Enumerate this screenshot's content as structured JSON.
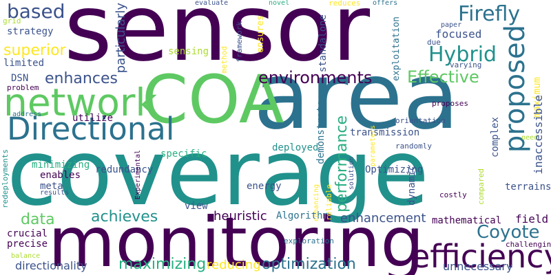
{
  "colors": {
    "background": "#ffffff",
    "dark_purple": "#440154",
    "indigo": "#3b528b",
    "teal": "#2c728e",
    "green_teal": "#21918c",
    "sea_green": "#28ae80",
    "green": "#5ec962",
    "yellow_green": "#addc30",
    "yellow": "#fde725"
  },
  "words": [
    {
      "id": "sensor",
      "text": "sensor",
      "color": "#440154",
      "orientation": "horizontal"
    },
    {
      "id": "coverage",
      "text": "coverage",
      "color": "#21918c",
      "orientation": "horizontal"
    },
    {
      "id": "area",
      "text": "area",
      "color": "#2c728e",
      "orientation": "horizontal"
    },
    {
      "id": "monitoring",
      "text": "monitoring",
      "color": "#440154",
      "orientation": "horizontal"
    },
    {
      "id": "coa",
      "text": "COA",
      "color": "#5ec962",
      "orientation": "horizontal"
    },
    {
      "id": "network",
      "text": "network",
      "color": "#5ec962",
      "orientation": "horizontal"
    },
    {
      "id": "directional",
      "text": "Directional",
      "color": "#2c728e",
      "orientation": "horizontal"
    },
    {
      "id": "efficiency",
      "text": "efficiency",
      "color": "#440154",
      "orientation": "horizontal"
    },
    {
      "id": "proposed",
      "text": "proposed",
      "color": "#2c728e",
      "orientation": "vertical"
    },
    {
      "id": "based",
      "text": "based",
      "color": "#3b528b",
      "orientation": "horizontal"
    },
    {
      "id": "firefly",
      "text": "Firefly",
      "color": "#2c728e",
      "orientation": "horizontal"
    },
    {
      "id": "hybrid",
      "text": "Hybrid",
      "color": "#21918c",
      "orientation": "horizontal"
    },
    {
      "id": "effective",
      "text": "Effective",
      "color": "#5ec962",
      "orientation": "horizontal"
    },
    {
      "id": "environments",
      "text": "environments",
      "color": "#440154",
      "orientation": "horizontal"
    },
    {
      "id": "coyote",
      "text": "Coyote",
      "color": "#2c728e",
      "orientation": "horizontal"
    },
    {
      "id": "superior",
      "text": "superior",
      "color": "#fde725",
      "orientation": "horizontal"
    },
    {
      "id": "enhances",
      "text": "enhances",
      "color": "#3b528b",
      "orientation": "horizontal"
    },
    {
      "id": "achieves",
      "text": "achieves",
      "color": "#21918c",
      "orientation": "horizontal"
    },
    {
      "id": "maximizing",
      "text": "maximizing",
      "color": "#28ae80",
      "orientation": "horizontal"
    },
    {
      "id": "optimization",
      "text": "optimization",
      "color": "#2c728e",
      "orientation": "horizontal"
    },
    {
      "id": "performance",
      "text": "performance",
      "color": "#28ae80",
      "orientation": "vertical"
    },
    {
      "id": "data",
      "text": "data",
      "color": "#5ec962",
      "orientation": "horizontal"
    },
    {
      "id": "directionality",
      "text": "directionality",
      "color": "#3b528b",
      "orientation": "horizontal"
    },
    {
      "id": "reducing",
      "text": "reducing",
      "color": "#fde725",
      "orientation": "horizontal"
    },
    {
      "id": "enhancement",
      "text": "enhancement",
      "color": "#3b528b",
      "orientation": "horizontal"
    },
    {
      "id": "heuristic",
      "text": "heuristic",
      "color": "#440154",
      "orientation": "horizontal"
    },
    {
      "id": "unnecessary",
      "text": "unnecessary",
      "color": "#3b528b",
      "orientation": "horizontal"
    },
    {
      "id": "particularly",
      "text": "particularly",
      "color": "#3b528b",
      "orientation": "vertical"
    },
    {
      "id": "strategy",
      "text": "strategy",
      "color": "#3b528b",
      "orientation": "horizontal"
    },
    {
      "id": "focused",
      "text": "focused",
      "color": "#3b528b",
      "orientation": "horizontal"
    },
    {
      "id": "sensing",
      "text": "sensing",
      "color": "#addc30",
      "orientation": "horizontal"
    },
    {
      "id": "limited",
      "text": "limited",
      "color": "#3b528b",
      "orientation": "horizontal"
    },
    {
      "id": "dsn",
      "text": "DSN",
      "color": "#3b528b",
      "orientation": "horizontal"
    },
    {
      "id": "problem",
      "text": "problem",
      "color": "#440154",
      "orientation": "horizontal"
    },
    {
      "id": "utilize",
      "text": "utilize",
      "color": "#440154",
      "orientation": "horizontal"
    },
    {
      "id": "enables",
      "text": "enables",
      "color": "#440154",
      "orientation": "horizontal"
    },
    {
      "id": "meta",
      "text": "meta",
      "color": "#3b528b",
      "orientation": "horizontal"
    },
    {
      "id": "energy",
      "text": "energy",
      "color": "#3b528b",
      "orientation": "horizontal"
    },
    {
      "id": "view",
      "text": "view",
      "color": "#3b528b",
      "orientation": "horizontal"
    },
    {
      "id": "crucial",
      "text": "crucial",
      "color": "#440154",
      "orientation": "horizontal"
    },
    {
      "id": "precise",
      "text": "precise",
      "color": "#440154",
      "orientation": "horizontal"
    },
    {
      "id": "field",
      "text": "field",
      "color": "#440154",
      "orientation": "horizontal"
    },
    {
      "id": "terrains",
      "text": "terrains",
      "color": "#3b528b",
      "orientation": "horizontal"
    },
    {
      "id": "transmission",
      "text": "transmission",
      "color": "#3b528b",
      "orientation": "vertical"
    },
    {
      "id": "orientation",
      "text": "orientation",
      "color": "#3b528b",
      "orientation": "vertical"
    },
    {
      "id": "randomly",
      "text": "randomly",
      "color": "#3b528b",
      "orientation": "vertical"
    },
    {
      "id": "deployed",
      "text": "deployed",
      "color": "#21918c",
      "orientation": "vertical"
    },
    {
      "id": "specific",
      "text": "specific",
      "color": "#28ae80",
      "orientation": "vertical"
    },
    {
      "id": "redundancy",
      "text": "redundancy",
      "color": "#3b528b",
      "orientation": "vertical"
    },
    {
      "id": "minimizing",
      "text": "minimizing",
      "color": "#28ae80",
      "orientation": "vertical"
    },
    {
      "id": "optimizing",
      "text": "Optimizing",
      "color": "#3b528b",
      "orientation": "vertical"
    },
    {
      "id": "algorithm",
      "text": "Algorithm",
      "color": "#2c728e",
      "orientation": "vertical"
    },
    {
      "id": "exploration",
      "text": "exploration",
      "color": "#2c728e",
      "orientation": "vertical"
    },
    {
      "id": "mathematical",
      "text": "mathematical",
      "color": "#440154",
      "orientation": "vertical"
    },
    {
      "id": "challenging",
      "text": "challenging",
      "color": "#440154",
      "orientation": "vertical"
    },
    {
      "id": "costly",
      "text": "costly",
      "color": "#440154",
      "orientation": "horizontal"
    },
    {
      "id": "proposes",
      "text": "proposes",
      "color": "#440154",
      "orientation": "horizontal"
    },
    {
      "id": "varying",
      "text": "varying",
      "color": "#3b528b",
      "orientation": "horizontal"
    },
    {
      "id": "due",
      "text": "due",
      "color": "#3b528b",
      "orientation": "horizontal"
    },
    {
      "id": "paper",
      "text": "paper",
      "color": "#3b528b",
      "orientation": "horizontal"
    },
    {
      "id": "need",
      "text": "need",
      "color": "#addc30",
      "orientation": "horizontal"
    },
    {
      "id": "evaluate",
      "text": "evaluate",
      "color": "#3b528b",
      "orientation": "horizontal"
    },
    {
      "id": "novel",
      "text": "novel",
      "color": "#28ae80",
      "orientation": "horizontal"
    },
    {
      "id": "reduces",
      "text": "reduces",
      "color": "#fde725",
      "orientation": "horizontal"
    },
    {
      "id": "offers",
      "text": "offers",
      "color": "#2c728e",
      "orientation": "horizontal"
    },
    {
      "id": "grid",
      "text": "grid",
      "color": "#addc30",
      "orientation": "horizontal"
    },
    {
      "id": "address",
      "text": "address",
      "color": "#2c728e",
      "orientation": "horizontal"
    },
    {
      "id": "results",
      "text": "results",
      "color": "#3b528b",
      "orientation": "horizontal"
    },
    {
      "id": "balance",
      "text": "balance",
      "color": "#addc30",
      "orientation": "horizontal"
    },
    {
      "id": "maximum",
      "text": "maximum",
      "color": "#fde725",
      "orientation": "horizontal"
    },
    {
      "id": "inaccessible",
      "text": "inaccessible",
      "color": "#3b528b",
      "orientation": "horizontal"
    },
    {
      "id": "complex",
      "text": "complex",
      "color": "#3b528b",
      "orientation": "horizontal"
    },
    {
      "id": "dynamic",
      "text": "dynamic",
      "color": "#3b528b",
      "orientation": "horizontal"
    },
    {
      "id": "demonstrate",
      "text": "demonstrate",
      "color": "#2c728e",
      "orientation": "horizontal"
    },
    {
      "id": "standalone",
      "text": "standalone",
      "color": "#3b528b",
      "orientation": "horizontal"
    },
    {
      "id": "ensures",
      "text": "ensures",
      "color": "#fde725",
      "orientation": "horizontal"
    },
    {
      "id": "exploitation",
      "text": "exploitation",
      "color": "#2c728e",
      "orientation": "horizontal"
    },
    {
      "id": "framework",
      "text": "framework",
      "color": "#3b528b",
      "orientation": "horizontal"
    },
    {
      "id": "method",
      "text": "method",
      "color": "#fde725",
      "orientation": "horizontal"
    },
    {
      "id": "compared",
      "text": "compared",
      "color": "#addc30",
      "orientation": "horizontal"
    },
    {
      "id": "reliable",
      "text": "reliable",
      "color": "#fde725",
      "orientation": "horizontal"
    },
    {
      "id": "redeployments",
      "text": "redeployments",
      "color": "#21918c",
      "orientation": "vertical"
    },
    {
      "id": "experimental",
      "text": "Experimental",
      "color": "#440154",
      "orientation": "vertical"
    },
    {
      "id": "enhancing",
      "text": "enhancing",
      "color": "#fde725",
      "orientation": "vertical"
    },
    {
      "id": "solution",
      "text": "solution",
      "color": "#3b528b",
      "orientation": "vertical"
    },
    {
      "id": "parameters",
      "text": "parameters",
      "color": "#fde725",
      "orientation": "vertical"
    }
  ]
}
